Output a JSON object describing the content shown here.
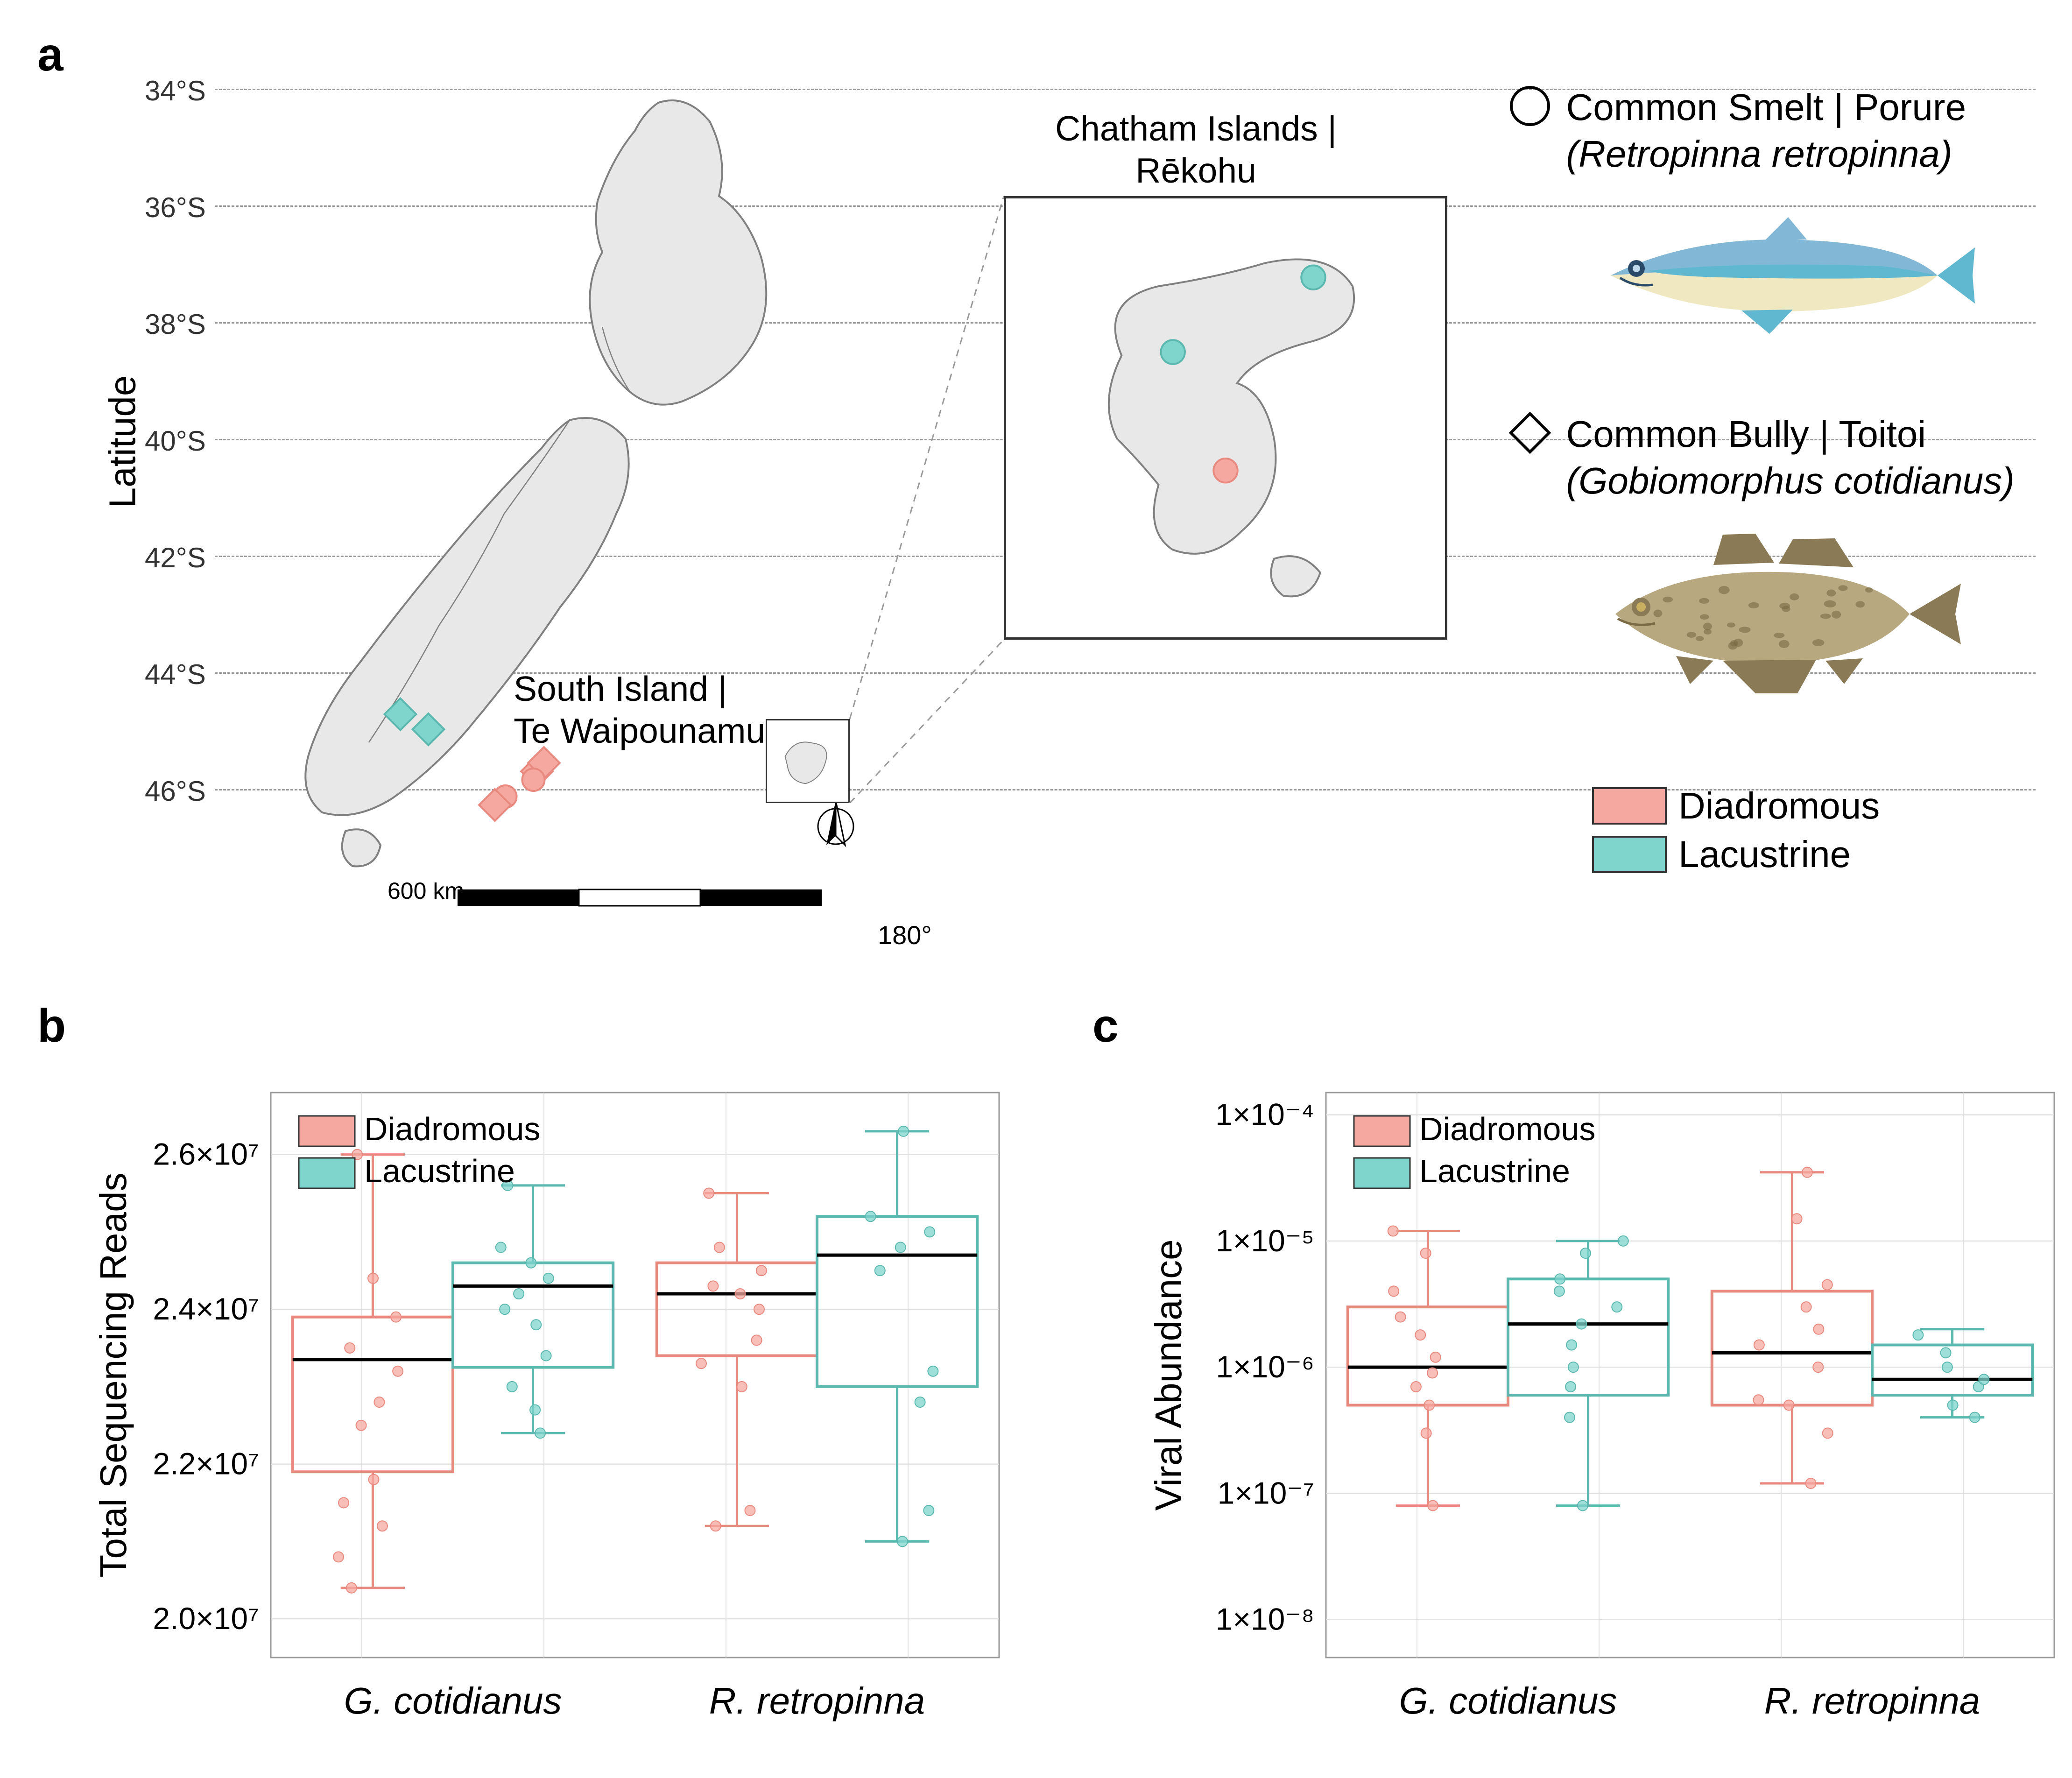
{
  "panels": {
    "a": "a",
    "b": "b",
    "c": "c"
  },
  "colors": {
    "diadromous": "#f5a8a0",
    "diadromous_border": "#e8897f",
    "lacustrine": "#7fd4cc",
    "lacustrine_border": "#5bb8af",
    "map_fill": "#e8e8e8",
    "map_stroke": "#808080",
    "grid": "#e0e0e0",
    "text": "#000000",
    "dashed": "#999999"
  },
  "panel_a": {
    "y_axis_label": "Latitude",
    "lat_ticks": [
      "34°S",
      "36°S",
      "38°S",
      "40°S",
      "42°S",
      "44°S",
      "46°S"
    ],
    "lat_tick_positions": [
      60,
      310,
      560,
      810,
      1060,
      1310,
      1560
    ],
    "lon_tick": "180°",
    "south_island_label": "South Island |\nTe Waipounamu",
    "chatham_label": "Chatham Islands |\nRēkohu",
    "scalebar_label": "600 km",
    "compass_label": "N",
    "species": [
      {
        "marker": "circle",
        "common_name": "Common Smelt | Porure",
        "sci_name": "(Retropinna retropinna)",
        "fish_colors": {
          "body_top": "#82b8d6",
          "body_mid": "#5fb8d0",
          "belly": "#f0e8c0",
          "eye": "#2a4a6a"
        }
      },
      {
        "marker": "diamond",
        "common_name": "Common Bully | Toitoi",
        "sci_name": "(Gobiomorphus cotidianus)",
        "fish_colors": {
          "body": "#b8a880",
          "fins": "#8a7a55",
          "spots": "#7a6a45",
          "eye": "#c8b060"
        }
      }
    ],
    "legend": [
      {
        "label": "Diadromous",
        "color_key": "diadromous"
      },
      {
        "label": "Lacustrine",
        "color_key": "lacustrine"
      }
    ],
    "map_points_main": [
      {
        "x": 0.265,
        "y": 0.772,
        "shape": "diamond",
        "color": "lacustrine"
      },
      {
        "x": 0.305,
        "y": 0.79,
        "shape": "diamond",
        "color": "lacustrine"
      },
      {
        "x": 0.46,
        "y": 0.84,
        "shape": "diamond",
        "color": "diadromous"
      },
      {
        "x": 0.47,
        "y": 0.83,
        "shape": "diamond",
        "color": "diadromous"
      },
      {
        "x": 0.455,
        "y": 0.85,
        "shape": "circle",
        "color": "diadromous"
      },
      {
        "x": 0.415,
        "y": 0.87,
        "shape": "circle",
        "color": "diadromous"
      },
      {
        "x": 0.4,
        "y": 0.88,
        "shape": "diamond",
        "color": "diadromous"
      }
    ],
    "map_points_inset": [
      {
        "x": 0.7,
        "y": 0.18,
        "shape": "circle",
        "color": "lacustrine"
      },
      {
        "x": 0.38,
        "y": 0.35,
        "shape": "circle",
        "color": "lacustrine"
      },
      {
        "x": 0.5,
        "y": 0.62,
        "shape": "circle",
        "color": "diadromous"
      }
    ]
  },
  "panel_b": {
    "y_axis_label": "Total Sequencing Reads",
    "y_ticks": [
      {
        "label": "2.0×10⁷",
        "value": 20000000.0
      },
      {
        "label": "2.2×10⁷",
        "value": 22000000.0
      },
      {
        "label": "2.4×10⁷",
        "value": 24000000.0
      },
      {
        "label": "2.6×10⁷",
        "value": 26000000.0
      }
    ],
    "ylim": [
      19500000.0,
      26800000.0
    ],
    "x_categories": [
      "G. cotidianus",
      "R. retropinna"
    ],
    "legend": [
      {
        "label": "Diadromous",
        "color_key": "diadromous"
      },
      {
        "label": "Lacustrine",
        "color_key": "lacustrine"
      }
    ],
    "boxes": [
      {
        "cat": 0,
        "group": "diadromous",
        "whisker_low": 20400000.0,
        "q1": 21900000.0,
        "median": 23350000.0,
        "q3": 23900000.0,
        "whisker_high": 26000000.0,
        "points": [
          20400000.0,
          20800000.0,
          21200000.0,
          21500000.0,
          21800000.0,
          22500000.0,
          22800000.0,
          23200000.0,
          23500000.0,
          23900000.0,
          24400000.0,
          26000000.0
        ]
      },
      {
        "cat": 0,
        "group": "lacustrine",
        "whisker_low": 22400000.0,
        "q1": 23250000.0,
        "median": 24300000.0,
        "q3": 24600000.0,
        "whisker_high": 25600000.0,
        "points": [
          22400000.0,
          22700000.0,
          23000000.0,
          23400000.0,
          23800000.0,
          24000000.0,
          24200000.0,
          24400000.0,
          24600000.0,
          24800000.0,
          25600000.0
        ]
      },
      {
        "cat": 1,
        "group": "diadromous",
        "whisker_low": 21200000.0,
        "q1": 23400000.0,
        "median": 24200000.0,
        "q3": 24600000.0,
        "whisker_high": 25500000.0,
        "points": [
          21200000.0,
          21400000.0,
          23000000.0,
          23300000.0,
          23600000.0,
          24000000.0,
          24200000.0,
          24300000.0,
          24500000.0,
          24800000.0,
          25500000.0
        ]
      },
      {
        "cat": 1,
        "group": "lacustrine",
        "whisker_low": 21000000.0,
        "q1": 23000000.0,
        "median": 24700000.0,
        "q3": 25200000.0,
        "whisker_high": 26300000.0,
        "points": [
          21000000.0,
          21400000.0,
          22800000.0,
          23200000.0,
          24500000.0,
          24800000.0,
          25000000.0,
          25200000.0,
          26300000.0
        ]
      }
    ]
  },
  "panel_c": {
    "y_axis_label": "Viral Abundance",
    "scale": "log",
    "y_ticks": [
      {
        "label": "1×10⁻⁸",
        "value": 1e-08
      },
      {
        "label": "1×10⁻⁷",
        "value": 1e-07
      },
      {
        "label": "1×10⁻⁶",
        "value": 1e-06
      },
      {
        "label": "1×10⁻⁵",
        "value": 1e-05
      },
      {
        "label": "1×10⁻⁴",
        "value": 0.0001
      }
    ],
    "ylim": [
      5e-09,
      0.00015
    ],
    "x_categories": [
      "G. cotidianus",
      "R. retropinna"
    ],
    "legend": [
      {
        "label": "Diadromous",
        "color_key": "diadromous"
      },
      {
        "label": "Lacustrine",
        "color_key": "lacustrine"
      }
    ],
    "boxes": [
      {
        "cat": 0,
        "group": "diadromous",
        "whisker_low": 8e-08,
        "q1": 5e-07,
        "median": 1e-06,
        "q3": 3e-06,
        "whisker_high": 1.2e-05,
        "points": [
          8e-08,
          3e-07,
          5e-07,
          7e-07,
          9e-07,
          1.2e-06,
          1.8e-06,
          2.5e-06,
          4e-06,
          8e-06,
          1.2e-05
        ]
      },
      {
        "cat": 0,
        "group": "lacustrine",
        "whisker_low": 8e-08,
        "q1": 6e-07,
        "median": 2.2e-06,
        "q3": 5e-06,
        "whisker_high": 1e-05,
        "points": [
          8e-08,
          4e-07,
          7e-07,
          1e-06,
          1.5e-06,
          2.2e-06,
          3e-06,
          4e-06,
          5e-06,
          8e-06,
          1e-05
        ]
      },
      {
        "cat": 1,
        "group": "diadromous",
        "whisker_low": 1.2e-07,
        "q1": 5e-07,
        "median": 1.3e-06,
        "q3": 4e-06,
        "whisker_high": 3.5e-05,
        "points": [
          1.2e-07,
          3e-07,
          5e-07,
          5.5e-07,
          1e-06,
          1.5e-06,
          2e-06,
          3e-06,
          4.5e-06,
          1.5e-05,
          3.5e-05
        ]
      },
      {
        "cat": 1,
        "group": "lacustrine",
        "whisker_low": 4e-07,
        "q1": 6e-07,
        "median": 8e-07,
        "q3": 1.5e-06,
        "whisker_high": 2e-06,
        "points": [
          4e-07,
          5e-07,
          7e-07,
          8e-07,
          1e-06,
          1.3e-06,
          1.8e-06
        ]
      }
    ]
  }
}
